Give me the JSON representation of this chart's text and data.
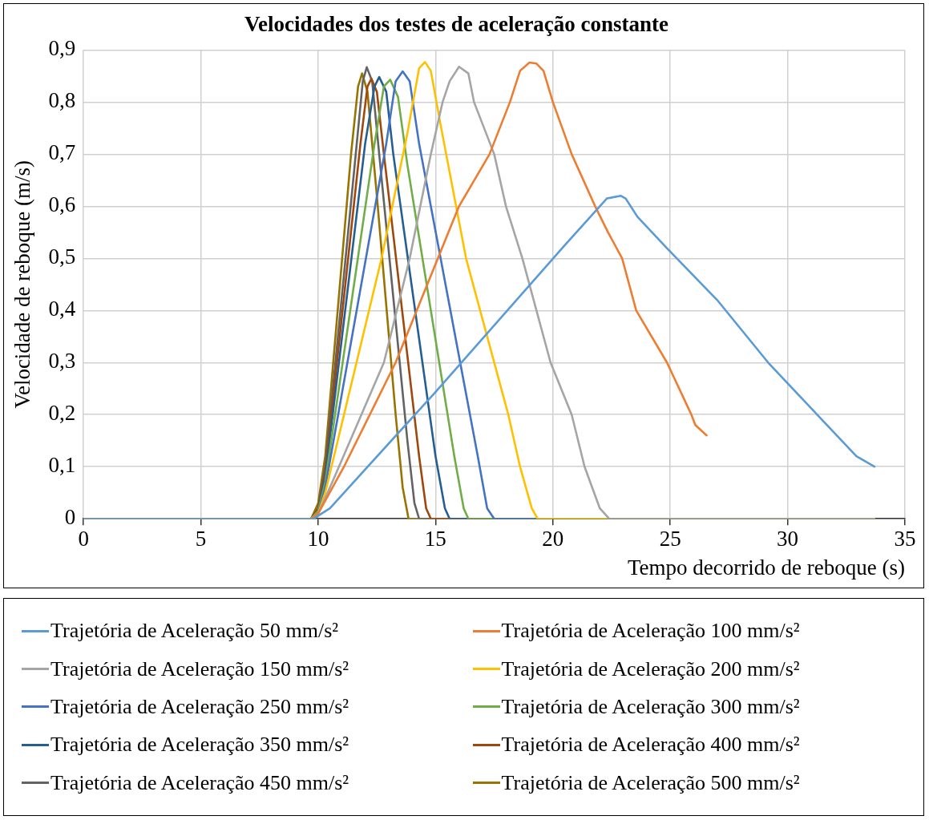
{
  "chart_data": {
    "type": "line",
    "title": "Velocidades dos testes de aceleração constante",
    "xlabel": "Tempo decorrido de reboque (s)",
    "ylabel": "Velocidade de reboque (m/s)",
    "xlim": [
      0,
      35
    ],
    "xticks": [
      0,
      5,
      10,
      15,
      20,
      25,
      30,
      35
    ],
    "ylim": [
      0,
      0.9
    ],
    "yticks": [
      0,
      {
        "value": 0.1,
        "label": "0,1"
      },
      {
        "value": 0.2,
        "label": "0,2"
      },
      {
        "value": 0.3,
        "label": "0,3"
      },
      {
        "value": 0.4,
        "label": "0,4"
      },
      {
        "value": 0.5,
        "label": "0,5"
      },
      {
        "value": 0.6,
        "label": "0,6"
      },
      {
        "value": 0.7,
        "label": "0,7"
      },
      {
        "value": 0.8,
        "label": "0,8"
      },
      {
        "value": 0.9,
        "label": "0,9"
      }
    ],
    "grid": true,
    "legend": "bottom",
    "marker": "none",
    "line_style": "solid",
    "series": [
      {
        "name": "Trajetória de Aceleração 50 mm/s²",
        "color": "#5b9bd5",
        "x": [
          0,
          9.8,
          10.5,
          14.93,
          20.5,
          21.9,
          22.3,
          22.9,
          23.1,
          23.6,
          24.85,
          27.0,
          29.17,
          32.93,
          33.7
        ],
        "values": [
          0,
          0,
          0.02,
          0.24,
          0.525,
          0.595,
          0.615,
          0.62,
          0.615,
          0.58,
          0.52,
          0.42,
          0.3,
          0.12,
          0.1
        ]
      },
      {
        "name": "Trajetória de Aceleração 100 mm/s²",
        "color": "#ed7d31",
        "x": [
          0,
          9.7,
          10.0,
          11.1,
          13.3,
          15.1,
          16.0,
          17.3,
          18.17,
          18.6,
          19.0,
          19.3,
          19.6,
          20.0,
          20.8,
          21.8,
          22.35,
          22.95,
          23.55,
          24.86,
          25.9,
          26.07,
          26.55
        ],
        "values": [
          0,
          0,
          0.01,
          0.1,
          0.3,
          0.5,
          0.6,
          0.7,
          0.8,
          0.86,
          0.876,
          0.874,
          0.86,
          0.8,
          0.7,
          0.6,
          0.55,
          0.5,
          0.4,
          0.3,
          0.2,
          0.18,
          0.16
        ]
      },
      {
        "name": "Trajetória de Aceleração 150 mm/s²",
        "color": "#a5a5a5",
        "x": [
          0,
          9.7,
          10.0,
          10.5,
          12.8,
          13.9,
          14.8,
          15.3,
          15.6,
          16.0,
          16.4,
          16.64,
          17.5,
          18.0,
          18.7,
          19.9,
          20.8,
          21.35,
          22.0,
          22.4,
          33.7
        ],
        "values": [
          0,
          0,
          0.01,
          0.06,
          0.3,
          0.5,
          0.7,
          0.8,
          0.84,
          0.868,
          0.855,
          0.8,
          0.7,
          0.6,
          0.5,
          0.3,
          0.2,
          0.1,
          0.02,
          0,
          0
        ]
      },
      {
        "name": "Trajetória de Aceleração 200 mm/s²",
        "color": "#ffc000",
        "x": [
          0,
          9.7,
          10.0,
          10.3,
          12.7,
          13.8,
          14.3,
          14.55,
          14.8,
          15.2,
          16.3,
          18.1,
          18.6,
          19.1,
          19.35,
          33.7
        ],
        "values": [
          0,
          0,
          0.01,
          0.05,
          0.5,
          0.74,
          0.865,
          0.877,
          0.86,
          0.76,
          0.5,
          0.2,
          0.1,
          0.02,
          0,
          0
        ]
      },
      {
        "name": "Trajetória de Aceleração 250 mm/s²",
        "color": "#4472c4",
        "x": [
          0,
          9.7,
          10.0,
          10.3,
          12.9,
          13.3,
          13.6,
          13.9,
          14.3,
          16.8,
          17.2,
          17.5,
          33.7
        ],
        "values": [
          0,
          0,
          0.01,
          0.06,
          0.72,
          0.84,
          0.859,
          0.84,
          0.72,
          0.12,
          0.02,
          0,
          0
        ]
      },
      {
        "name": "Trajetória de Aceleração 300 mm/s²",
        "color": "#70ad47",
        "x": [
          0,
          9.7,
          10.0,
          10.3,
          12.4,
          12.8,
          13.07,
          13.4,
          13.8,
          15.8,
          16.2,
          16.4,
          33.7
        ],
        "values": [
          0,
          0,
          0.015,
          0.07,
          0.72,
          0.83,
          0.843,
          0.81,
          0.68,
          0.12,
          0.02,
          0,
          0
        ]
      },
      {
        "name": "Trajetória de Aceleração 350 mm/s²",
        "color": "#255e91",
        "x": [
          0,
          9.7,
          10.0,
          10.3,
          12.0,
          12.4,
          12.6,
          12.9,
          13.2,
          15.0,
          15.4,
          15.6,
          33.7
        ],
        "values": [
          0,
          0,
          0.015,
          0.08,
          0.72,
          0.83,
          0.848,
          0.82,
          0.7,
          0.12,
          0.02,
          0,
          0
        ]
      },
      {
        "name": "Trajetória de Aceleração 400 mm/s²",
        "color": "#9e480e",
        "x": [
          0,
          9.7,
          10.0,
          10.3,
          11.8,
          12.1,
          12.27,
          12.5,
          12.8,
          14.3,
          14.6,
          14.8,
          33.7
        ],
        "values": [
          0,
          0,
          0.02,
          0.09,
          0.72,
          0.83,
          0.845,
          0.82,
          0.7,
          0.12,
          0.02,
          0,
          0
        ]
      },
      {
        "name": "Trajetória de Aceleração 450 mm/s²",
        "color": "#636363",
        "x": [
          0,
          9.7,
          10.0,
          10.3,
          11.6,
          11.9,
          12.07,
          12.3,
          12.6,
          13.8,
          14.1,
          14.3,
          33.7
        ],
        "values": [
          0,
          0,
          0.02,
          0.1,
          0.7,
          0.84,
          0.867,
          0.84,
          0.7,
          0.15,
          0.03,
          0,
          0
        ]
      },
      {
        "name": "Trajetória de Aceleração 500 mm/s²",
        "color": "#997300",
        "x": [
          0,
          9.7,
          10.0,
          10.3,
          11.4,
          11.7,
          11.87,
          12.1,
          12.5,
          13.3,
          13.6,
          13.85,
          33.7
        ],
        "values": [
          0,
          0,
          0.03,
          0.12,
          0.7,
          0.83,
          0.855,
          0.82,
          0.62,
          0.2,
          0.06,
          0,
          0
        ]
      }
    ]
  }
}
